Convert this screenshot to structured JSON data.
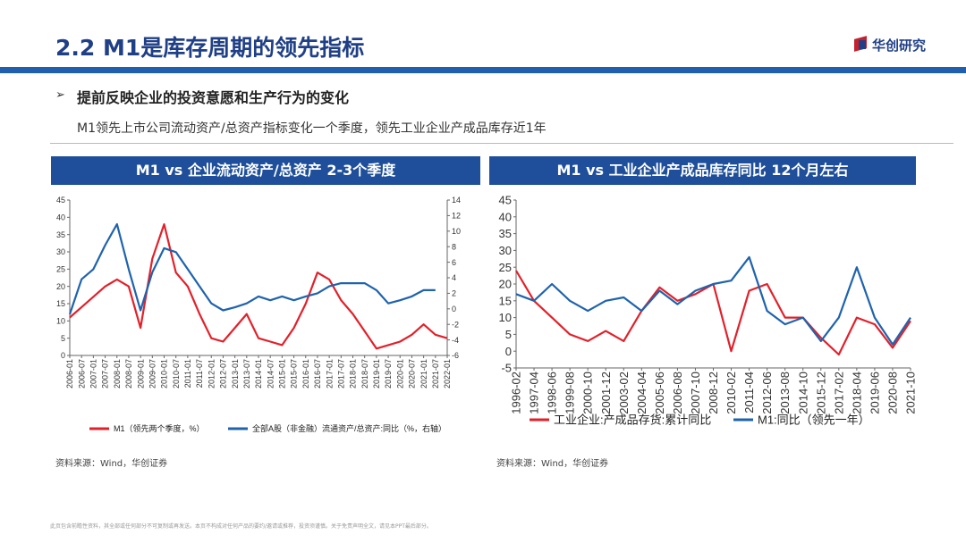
{
  "header": {
    "title": "2.2 M1是库存周期的领先指标",
    "logo": "华创研究"
  },
  "bullet": "提前反映企业的投资意愿和生产行为的变化",
  "subtitle": "M1领先上市公司流动资产/总资产指标变化一个季度，领先工业企业产成品库存近1年",
  "chart_data": [
    {
      "type": "line",
      "title": "M1 vs 企业流动资产/总资产 2-3个季度",
      "source": "资料来源：Wind，华创证券",
      "legend": "bottom",
      "grid": false,
      "categories": [
        "2006-01",
        "2006-07",
        "2007-01",
        "2007-07",
        "2008-01",
        "2008-07",
        "2009-01",
        "2009-07",
        "2010-01",
        "2010-07",
        "2011-01",
        "2011-07",
        "2012-01",
        "2012-07",
        "2013-01",
        "2013-07",
        "2014-01",
        "2014-07",
        "2015-01",
        "2015-07",
        "2016-01",
        "2016-07",
        "2017-01",
        "2017-07",
        "2018-01",
        "2018-07",
        "2019-01",
        "2019-07",
        "2020-01",
        "2020-07",
        "2021-01",
        "2021-07",
        "2022-01"
      ],
      "ylim": [
        0,
        45
      ],
      "yticks": [
        0,
        5,
        10,
        15,
        20,
        25,
        30,
        35,
        40,
        45
      ],
      "y2lim": [
        -6,
        14
      ],
      "y2ticks": [
        -6,
        -4,
        -2,
        0,
        2,
        4,
        6,
        8,
        10,
        12,
        14
      ],
      "series": [
        {
          "name": "M1（领先两个季度，%）",
          "color": "#e3202a",
          "values": [
            11,
            14,
            17,
            20,
            22,
            20,
            8,
            28,
            38,
            24,
            20,
            12,
            5,
            4,
            8,
            12,
            5,
            4,
            3,
            8,
            15,
            24,
            22,
            16,
            12,
            7,
            2,
            3,
            4,
            6,
            9,
            6,
            5
          ]
        },
        {
          "name": "全部A股（非金融）流通资产/总资产:同比（%，右轴）",
          "color": "#1f63ad",
          "axis": "y2",
          "values": [
            -0.7,
            3.8,
            5.1,
            8.2,
            10.9,
            5.1,
            -0.2,
            4.7,
            7.8,
            7.3,
            5.1,
            2.9,
            0.7,
            -0.2,
            0.2,
            0.7,
            1.6,
            1.1,
            1.6,
            1.1,
            1.6,
            2.0,
            2.9,
            3.3,
            3.3,
            3.3,
            2.4,
            0.7,
            1.1,
            1.6,
            2.4,
            2.4,
            null
          ]
        }
      ]
    },
    {
      "type": "line",
      "title": "M1 vs 工业企业产成品库存同比 12个月左右",
      "source": "资料来源：Wind，华创证券",
      "legend": "bottom",
      "grid": false,
      "categories": [
        "1996-02",
        "1997-04",
        "1998-06",
        "1999-08",
        "2000-10",
        "2001-12",
        "2003-02",
        "2004-04",
        "2005-06",
        "2006-08",
        "2007-10",
        "2008-12",
        "2010-02",
        "2011-04",
        "2012-06",
        "2013-08",
        "2014-10",
        "2015-12",
        "2017-02",
        "2018-04",
        "2019-06",
        "2020-08",
        "2021-10"
      ],
      "ylim": [
        -5,
        45
      ],
      "yticks": [
        -5,
        0,
        5,
        10,
        15,
        20,
        25,
        30,
        35,
        40,
        45
      ],
      "series": [
        {
          "name": "工业企业:产成品存货:累计同比",
          "color": "#e3202a",
          "values": [
            24,
            15,
            10,
            5,
            3,
            6,
            3,
            12,
            19,
            15,
            17,
            20,
            0,
            18,
            20,
            10,
            10,
            4,
            -1,
            10,
            8,
            1,
            9
          ]
        },
        {
          "name": "M1:同比（领先一年）",
          "color": "#1f63ad",
          "values": [
            17,
            15,
            20,
            15,
            12,
            15,
            16,
            12,
            18,
            14,
            18,
            20,
            21,
            28,
            12,
            8,
            10,
            3,
            10,
            25,
            10,
            2,
            10
          ]
        }
      ]
    }
  ],
  "footer": "此页包含前瞻性资料，其全部或任何部分不可复制或再发送。本页不构成对任何产品的要约/邀请或推荐，投资须谨慎。关于免责声明全文，请见本PPT最后部分。"
}
